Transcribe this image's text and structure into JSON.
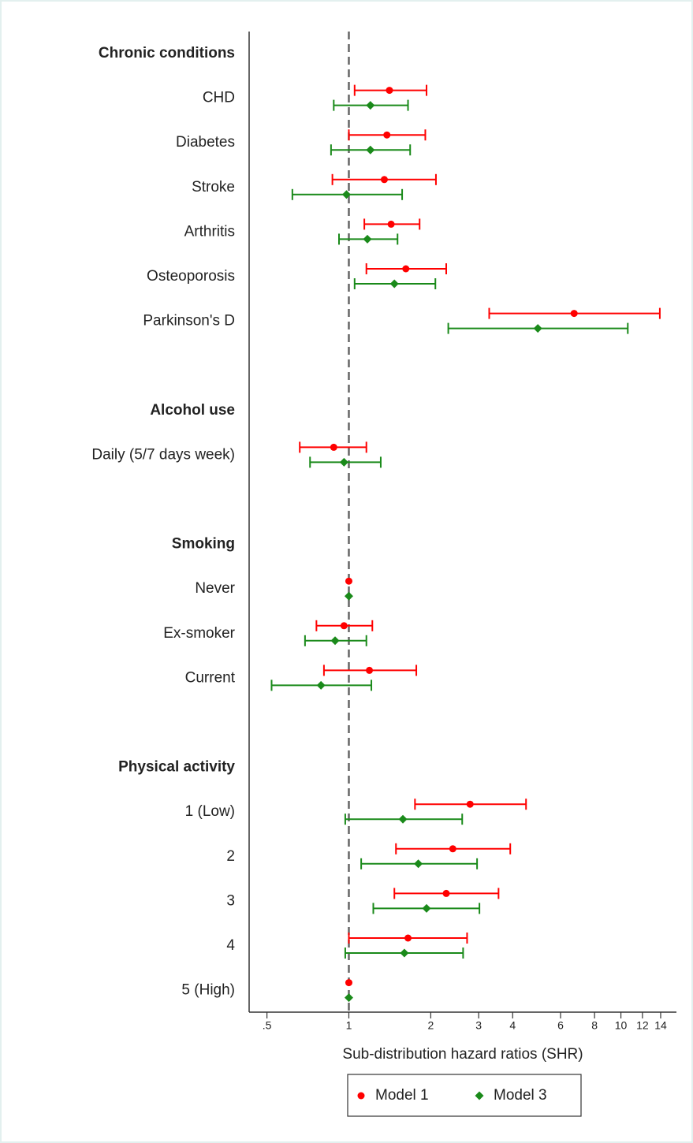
{
  "chart_data": {
    "type": "forest",
    "x_label": "Sub-distribution hazard ratios (SHR)",
    "xscale": "log",
    "xlim": [
      0.43,
      16
    ],
    "xticks": [
      {
        "value": 0.5,
        "label": ".5"
      },
      1,
      2,
      3,
      4,
      6,
      8,
      10,
      12,
      14
    ],
    "reference_line": 1,
    "legend_position": "bottom",
    "category_groups": [
      {
        "name": "Chronic conditions",
        "categories": [
          "CHD",
          "Diabetes",
          "Stroke",
          "Arthritis",
          "Osteoporosis",
          "Parkinson's D"
        ]
      },
      {
        "name": "Alcohol use",
        "categories": [
          "Daily (5/7 days week)"
        ]
      },
      {
        "name": "Smoking",
        "categories": [
          "Never",
          "Ex-smoker",
          "Current"
        ]
      },
      {
        "name": "Physical activity",
        "categories": [
          "1 (Low)",
          "2",
          "3",
          "4",
          "5 (High)"
        ]
      }
    ],
    "series": [
      {
        "name": "Model 1",
        "color": "#ff0000",
        "marker": "circle",
        "values": [
          1.41,
          1.38,
          1.35,
          1.43,
          1.62,
          6.73,
          0.88,
          1,
          0.96,
          1.19,
          2.79,
          2.41,
          2.28,
          1.65,
          1
        ],
        "lower": [
          1.05,
          1.0,
          0.87,
          1.14,
          1.16,
          3.28,
          0.66,
          null,
          0.76,
          0.81,
          1.75,
          1.49,
          1.47,
          1.0,
          null
        ],
        "upper": [
          1.93,
          1.91,
          2.09,
          1.82,
          2.28,
          13.9,
          1.16,
          null,
          1.22,
          1.77,
          4.48,
          3.92,
          3.55,
          2.72,
          null
        ]
      },
      {
        "name": "Model 3",
        "color": "#1a8a1a",
        "marker": "diamond",
        "values": [
          1.2,
          1.2,
          0.98,
          1.17,
          1.47,
          4.95,
          0.96,
          1,
          0.89,
          0.79,
          1.58,
          1.8,
          1.93,
          1.6,
          1
        ],
        "lower": [
          0.88,
          0.86,
          0.62,
          0.92,
          1.05,
          2.32,
          0.72,
          null,
          0.69,
          0.52,
          0.97,
          1.11,
          1.23,
          0.97,
          null
        ],
        "upper": [
          1.65,
          1.68,
          1.57,
          1.51,
          2.08,
          10.6,
          1.31,
          null,
          1.16,
          1.21,
          2.61,
          2.96,
          3.02,
          2.63,
          null
        ]
      }
    ]
  }
}
